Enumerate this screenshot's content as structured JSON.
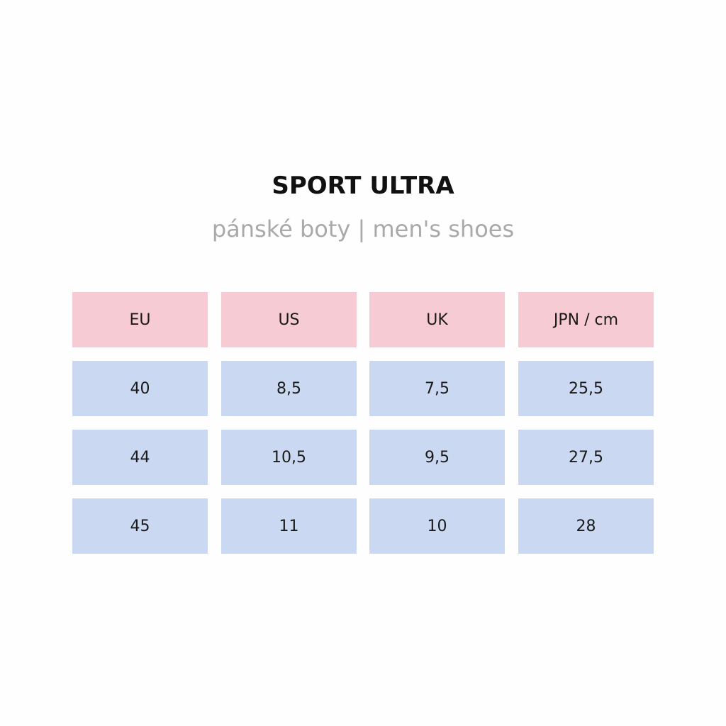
{
  "header": {
    "title": "SPORT ULTRA",
    "subtitle": "pánské boty | men's shoes"
  },
  "table": {
    "columns": [
      "EU",
      "US",
      "UK",
      "JPN / cm"
    ],
    "rows": [
      [
        "40",
        "8,5",
        "7,5",
        "25,5"
      ],
      [
        "44",
        "10,5",
        "9,5",
        "27,5"
      ],
      [
        "45",
        "11",
        "10",
        "28"
      ]
    ]
  }
}
